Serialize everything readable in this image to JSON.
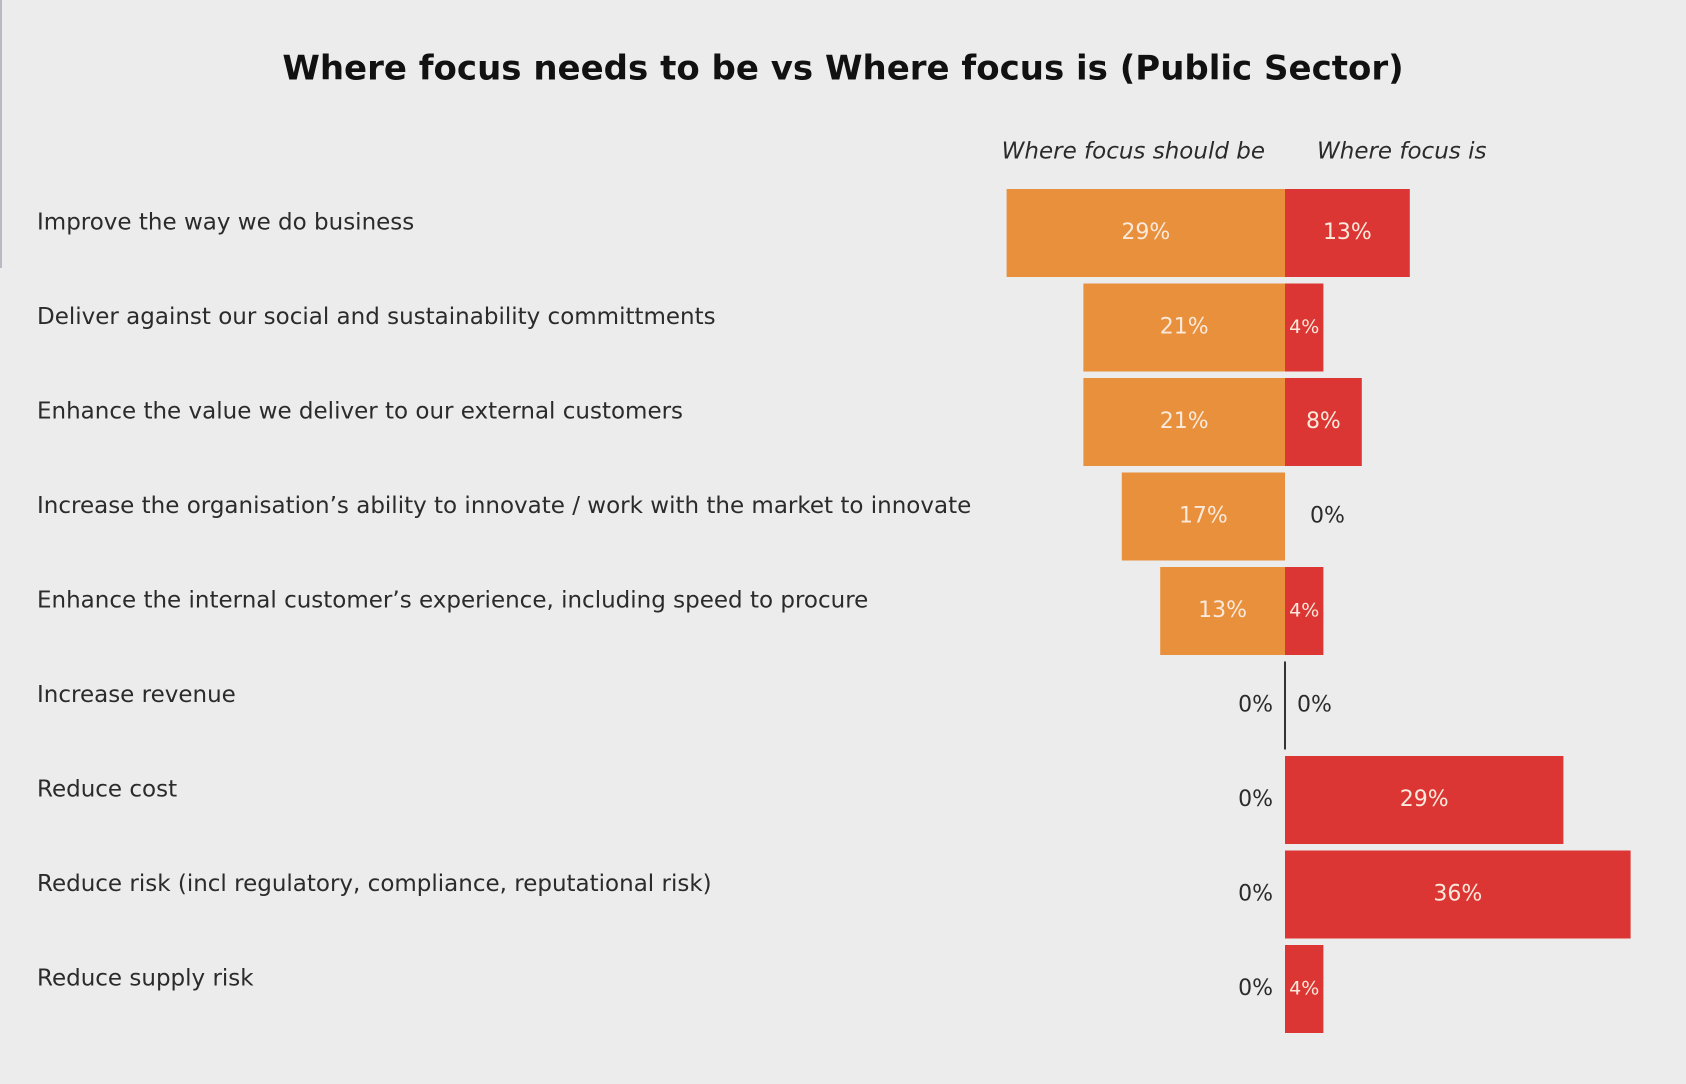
{
  "chart_data": {
    "type": "bar",
    "orientation": "diverging-horizontal",
    "title": "Where focus needs to be vs Where focus is (Public Sector)",
    "xlabel": "",
    "ylabel": "",
    "unit": "%",
    "xlim": [
      0,
      40
    ],
    "legend": "top",
    "grid": false,
    "colors": {
      "background": "#ececec",
      "should_be": "#e8903c",
      "is": "#dc3634",
      "text": "#2b2b2b",
      "title": "#111111",
      "label_on_bar": "#fbe9dc"
    },
    "categories": [
      "Improve the way we do business",
      "Deliver against our social and sustainability committments",
      "Enhance the value we deliver to our external customers",
      "Increase the organisation’s ability to innovate / work with the market to innovate",
      "Enhance the internal customer’s experience, including speed to procure",
      "Increase revenue",
      "Reduce cost",
      "Reduce risk (incl regulatory, compliance, reputational risk)",
      "Reduce supply risk"
    ],
    "series": [
      {
        "name": "Where focus should be",
        "values": [
          29,
          21,
          21,
          17,
          13,
          0,
          0,
          0,
          0
        ],
        "labels": [
          "29%",
          "21%",
          "21%",
          "17%",
          "13%",
          "0%",
          "0%",
          "0%",
          "0%"
        ]
      },
      {
        "name": "Where focus is",
        "values": [
          13,
          4,
          8,
          0,
          4,
          0,
          29,
          36,
          4
        ],
        "labels": [
          "13%",
          "4%",
          "8%",
          "0%",
          "4%",
          "0%",
          "29%",
          "36%",
          "4%"
        ]
      }
    ]
  }
}
